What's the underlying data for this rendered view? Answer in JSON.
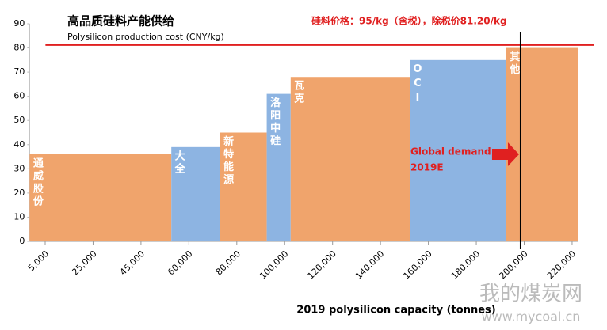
{
  "chart_data": {
    "type": "bar",
    "title": "高品质硅料产能供给",
    "price_note": "硅料价格：95/kg（含税），除税价81.20/kg",
    "y_label": "Polysilicon production cost (CNY/kg)",
    "x_label": "2019 polysilicon capacity (tonnes)",
    "categories": [
      "通威股份",
      "大全",
      "新特能源",
      "洛阳中硅",
      "瓦克",
      "OCI",
      "其他"
    ],
    "bar_starts": [
      -1500,
      54500,
      73000,
      92500,
      102500,
      152500,
      192500
    ],
    "bar_ends": [
      54500,
      73000,
      92500,
      102500,
      152500,
      192500,
      222500
    ],
    "values": [
      36,
      39,
      45,
      61,
      68,
      75,
      80
    ],
    "colors": [
      "#f0a46c",
      "#8db4e2",
      "#f0a46c",
      "#8db4e2",
      "#f0a46c",
      "#8db4e2",
      "#f0a46c"
    ],
    "cost_line": 81.2,
    "cost_line_color": "#e02020",
    "demand_x": 198500,
    "demand_label": [
      "Global demand",
      "2019E"
    ],
    "demand_color": "#e02020",
    "xlim": [
      -1500,
      222500
    ],
    "xticks": [
      {
        "value": 5000,
        "label": "5,000"
      },
      {
        "value": 25000,
        "label": "25,000"
      },
      {
        "value": 45000,
        "label": "45,000"
      },
      {
        "value": 60000,
        "label": "60,000"
      },
      {
        "value": 80000,
        "label": "80,000"
      },
      {
        "value": 100000,
        "label": "100,000"
      },
      {
        "value": 120000,
        "label": "120,000"
      },
      {
        "value": 140000,
        "label": "140,000"
      },
      {
        "value": 160000,
        "label": "160,000"
      },
      {
        "value": 180000,
        "label": "180,000"
      },
      {
        "value": 200000,
        "label": "200,000"
      },
      {
        "value": 220000,
        "label": "220,000"
      }
    ],
    "ylim": [
      0,
      90
    ],
    "yticks": [
      0,
      10,
      20,
      30,
      40,
      50,
      60,
      70,
      80,
      90
    ]
  },
  "watermark": {
    "name": "我的煤炭网",
    "url": "www.mycoal.cn"
  }
}
